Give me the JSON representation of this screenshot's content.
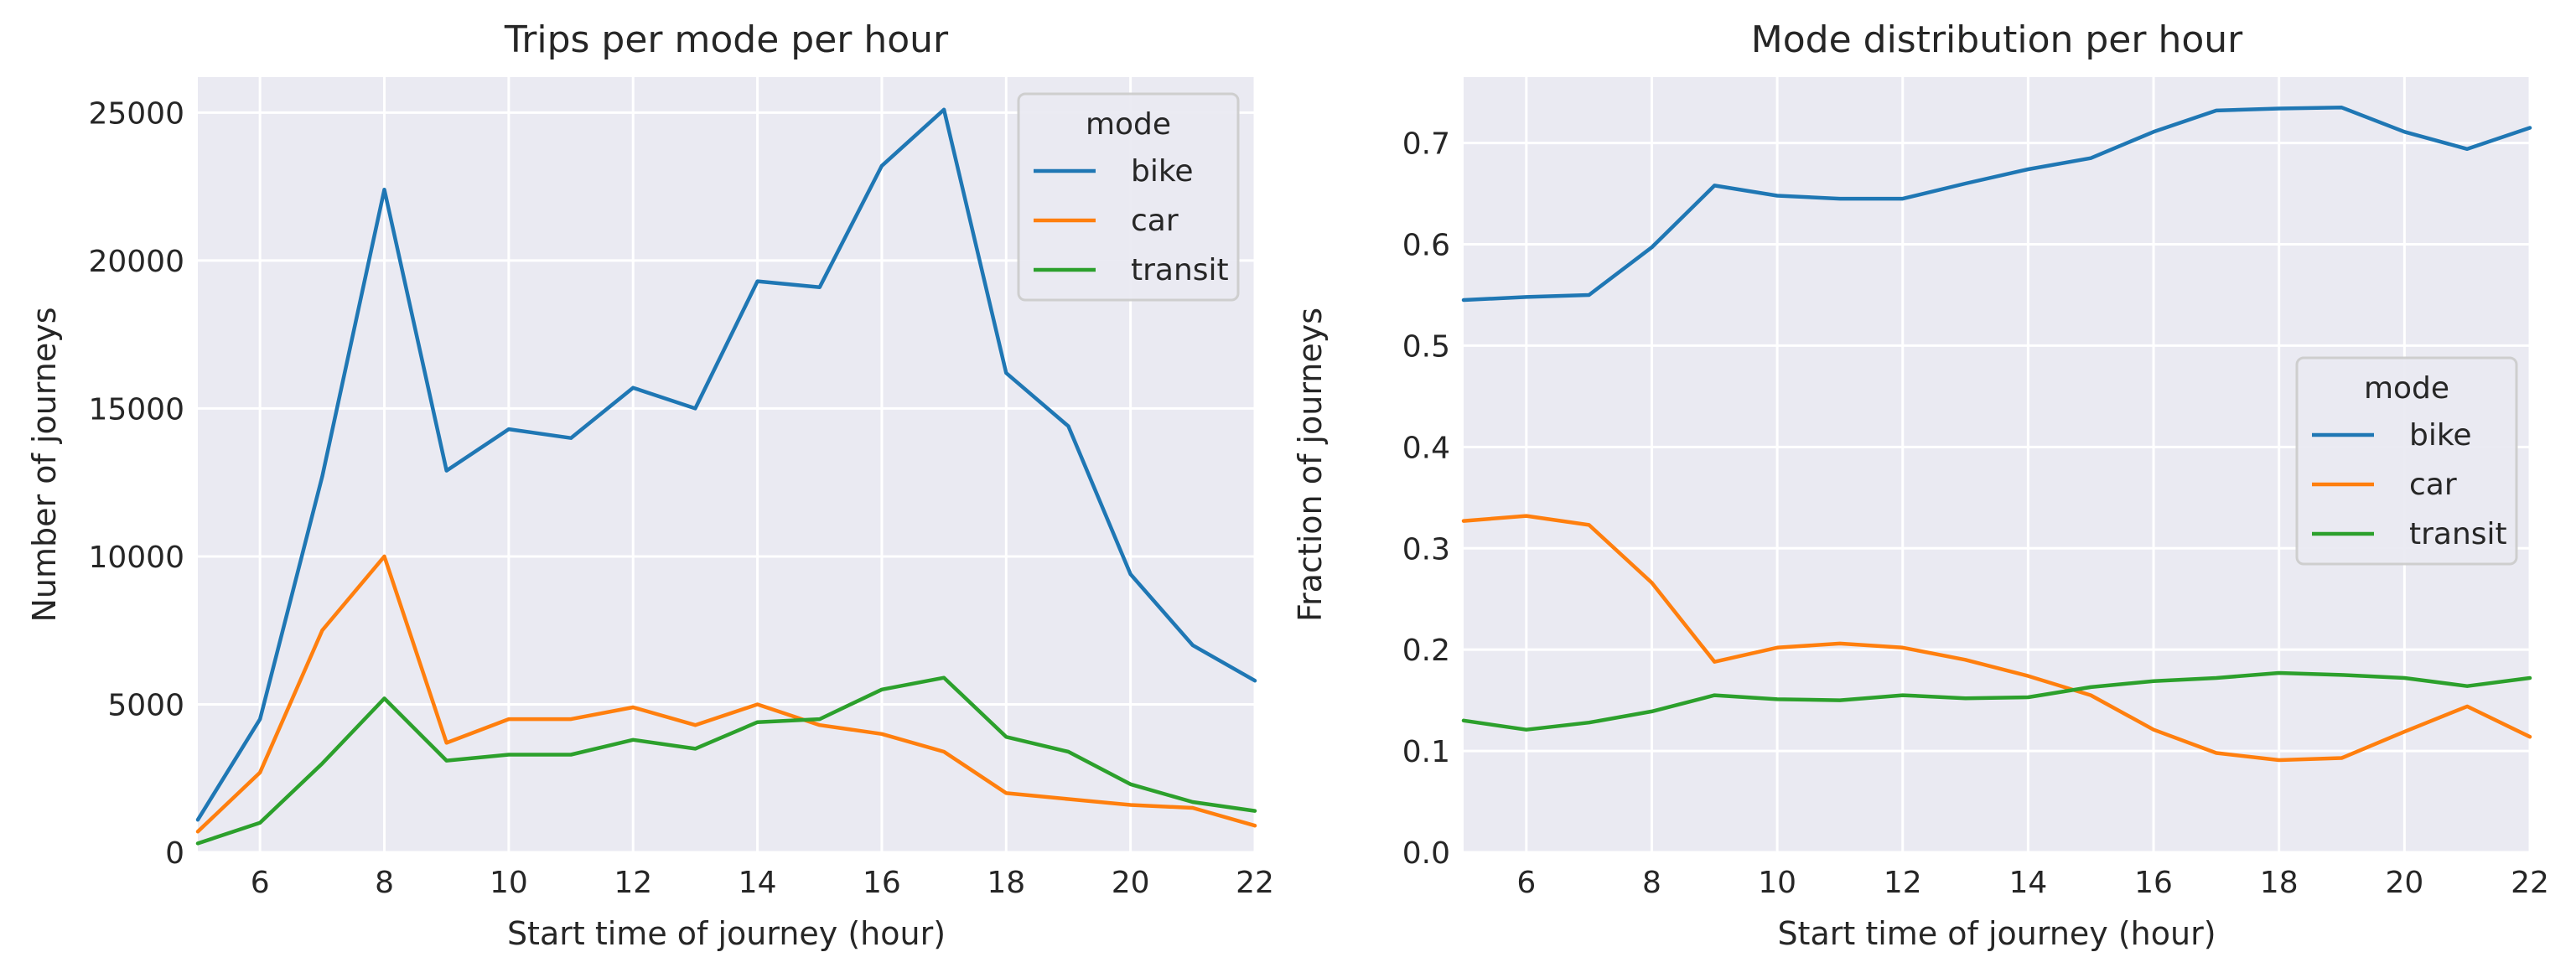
{
  "colors": {
    "bike": "#1f77b4",
    "car": "#ff7f0e",
    "transit": "#2ca02c"
  },
  "chart_data": [
    {
      "type": "line",
      "title": "Trips per mode per hour",
      "xlabel": "Start time of journey (hour)",
      "ylabel": "Number of journeys",
      "x": [
        5,
        6,
        7,
        8,
        9,
        10,
        11,
        12,
        13,
        14,
        15,
        16,
        17,
        18,
        19,
        20,
        21,
        22
      ],
      "xlim": [
        5,
        22
      ],
      "ylim": [
        0,
        26200
      ],
      "xticks": [
        6,
        8,
        10,
        12,
        14,
        16,
        18,
        20,
        22
      ],
      "yticks": [
        0,
        5000,
        10000,
        15000,
        20000,
        25000
      ],
      "legend": {
        "title": "mode",
        "position": "top-right"
      },
      "grid": true,
      "series": [
        {
          "name": "bike",
          "values": [
            1100,
            4500,
            12700,
            22400,
            12900,
            14300,
            14000,
            15700,
            15000,
            19300,
            19100,
            23200,
            25100,
            16200,
            14400,
            9400,
            7000,
            5800
          ]
        },
        {
          "name": "car",
          "values": [
            700,
            2700,
            7500,
            10000,
            3700,
            4500,
            4500,
            4900,
            4300,
            5000,
            4300,
            4000,
            3400,
            2000,
            1800,
            1600,
            1500,
            900
          ]
        },
        {
          "name": "transit",
          "values": [
            300,
            1000,
            3000,
            5200,
            3100,
            3300,
            3300,
            3800,
            3500,
            4400,
            4500,
            5500,
            5900,
            3900,
            3400,
            2300,
            1700,
            1400
          ]
        }
      ]
    },
    {
      "type": "line",
      "title": "Mode distribution per hour",
      "xlabel": "Start time of journey (hour)",
      "ylabel": "Fraction of journeys",
      "x": [
        5,
        6,
        7,
        8,
        9,
        10,
        11,
        12,
        13,
        14,
        15,
        16,
        17,
        18,
        19,
        20,
        21,
        22
      ],
      "xlim": [
        5,
        22
      ],
      "ylim": [
        0,
        0.765
      ],
      "xticks": [
        6,
        8,
        10,
        12,
        14,
        16,
        18,
        20,
        22
      ],
      "yticks": [
        0.0,
        0.1,
        0.2,
        0.3,
        0.4,
        0.5,
        0.6,
        0.7
      ],
      "yticklabels": [
        "0.0",
        "0.1",
        "0.2",
        "0.3",
        "0.4",
        "0.5",
        "0.6",
        "0.7"
      ],
      "legend": {
        "title": "mode",
        "position": "center-right"
      },
      "grid": true,
      "series": [
        {
          "name": "bike",
          "values": [
            0.545,
            0.548,
            0.55,
            0.597,
            0.658,
            0.648,
            0.645,
            0.645,
            0.66,
            0.674,
            0.685,
            0.711,
            0.732,
            0.734,
            0.735,
            0.711,
            0.694,
            0.715
          ]
        },
        {
          "name": "car",
          "values": [
            0.327,
            0.332,
            0.323,
            0.266,
            0.188,
            0.202,
            0.206,
            0.202,
            0.19,
            0.174,
            0.155,
            0.121,
            0.098,
            0.091,
            0.093,
            0.119,
            0.144,
            0.114
          ]
        },
        {
          "name": "transit",
          "values": [
            0.13,
            0.121,
            0.128,
            0.139,
            0.155,
            0.151,
            0.15,
            0.155,
            0.152,
            0.153,
            0.163,
            0.169,
            0.172,
            0.177,
            0.175,
            0.172,
            0.164,
            0.172
          ]
        }
      ]
    }
  ]
}
